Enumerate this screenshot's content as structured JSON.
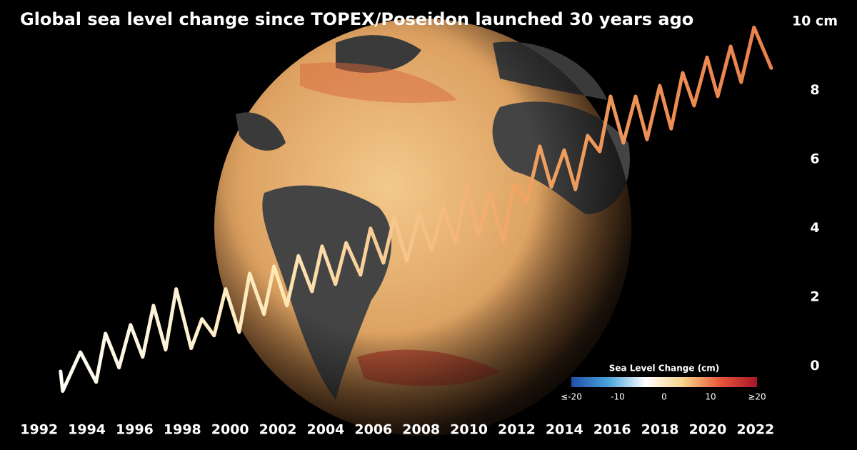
{
  "chart_data": {
    "type": "line",
    "title": "Global sea level change since TOPEX/Poseidon launched 30 years ago",
    "x": [
      1992.9,
      1992.99,
      1993.73,
      1994.39,
      1994.78,
      1995.35,
      1995.83,
      1996.34,
      1996.79,
      1997.3,
      1997.74,
      1998.37,
      1998.82,
      1999.33,
      1999.81,
      2000.38,
      2000.82,
      2001.42,
      2001.84,
      2002.38,
      2002.86,
      2003.43,
      2003.85,
      2004.41,
      2004.86,
      2005.46,
      2005.88,
      2006.42,
      2006.87,
      2007.4,
      2007.91,
      2008.45,
      2008.93,
      2009.44,
      2009.92,
      2010.4,
      2010.88,
      2011.44,
      2011.89,
      2012.43,
      2012.97,
      2013.45,
      2013.99,
      2014.46,
      2014.97,
      2015.48,
      2015.93,
      2016.47,
      2016.98,
      2017.46,
      2017.99,
      2018.47,
      2018.95,
      2019.43,
      2019.97,
      2020.42,
      2020.96,
      2021.4,
      2021.94,
      2022.66
    ],
    "values": [
      -0.15,
      -0.72,
      0.41,
      -0.46,
      0.95,
      -0.04,
      1.2,
      0.27,
      1.76,
      0.48,
      2.24,
      0.52,
      1.37,
      0.89,
      2.24,
      0.99,
      2.69,
      1.51,
      2.9,
      1.76,
      3.2,
      2.17,
      3.48,
      2.38,
      3.58,
      2.65,
      4.0,
      3.0,
      4.3,
      3.06,
      4.41,
      3.37,
      4.62,
      3.62,
      5.24,
      3.79,
      4.99,
      3.62,
      5.28,
      4.78,
      6.38,
      5.2,
      6.27,
      5.13,
      6.69,
      6.23,
      7.83,
      6.48,
      7.83,
      6.58,
      8.14,
      6.89,
      8.51,
      7.56,
      8.96,
      7.83,
      9.28,
      8.24,
      9.83,
      8.65
    ],
    "line_gradient": [
      "#ffffff",
      "#fde7b5",
      "#f0a05e",
      "#eb7d4a"
    ],
    "xlim": [
      1991.5,
      2023.5
    ],
    "xticks": [
      1992,
      1994,
      1996,
      1998,
      2000,
      2002,
      2004,
      2006,
      2008,
      2010,
      2012,
      2014,
      2016,
      2018,
      2020,
      2022
    ],
    "ylim": [
      -1,
      10.5
    ],
    "yticks": [
      0,
      2,
      4,
      6,
      8,
      {
        "value": 10,
        "label": "10 cm"
      }
    ],
    "colorbar": {
      "title": "Sea Level Change (cm)",
      "range": [
        -20,
        20
      ],
      "ticks": [
        {
          "value": -20,
          "label": "≤-20"
        },
        -10,
        0,
        10,
        {
          "value": 20,
          "label": "≥20"
        }
      ],
      "colors": [
        "#1f4fa8",
        "#4aa3dc",
        "#ffffff",
        "#f7d48a",
        "#e8573a",
        "#a8152a"
      ]
    }
  }
}
